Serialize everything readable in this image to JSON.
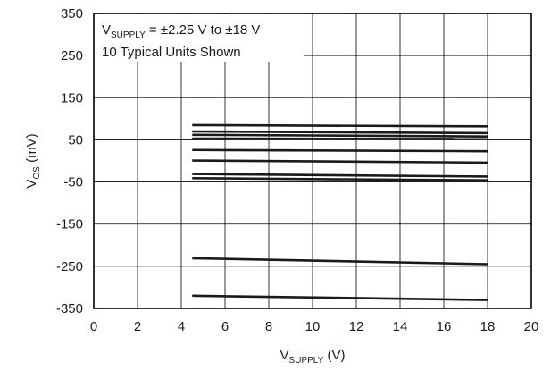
{
  "chart_data": {
    "type": "line",
    "xlabel": {
      "main": "V",
      "sub": "SUPPLY",
      "unit": " (V)"
    },
    "ylabel": {
      "main": "V",
      "sub": "OS",
      "unit": " (mV)"
    },
    "xlim": [
      0,
      20
    ],
    "ylim": [
      -350,
      350
    ],
    "x_ticks": [
      0,
      2,
      4,
      6,
      8,
      10,
      12,
      14,
      16,
      18,
      20
    ],
    "y_ticks": [
      -350,
      -250,
      -150,
      -50,
      50,
      150,
      250,
      350
    ],
    "grid": true,
    "annotation": {
      "line1": {
        "prefix": "V",
        "sub": "SUPPLY",
        "suffix": " = ±2.25 V to ±18 V"
      },
      "line2": "10 Typical Units Shown"
    },
    "series": [
      {
        "x": [
          4.5,
          18
        ],
        "values": [
          85,
          82
        ]
      },
      {
        "x": [
          4.5,
          18
        ],
        "values": [
          70,
          66
        ]
      },
      {
        "x": [
          4.5,
          18
        ],
        "values": [
          62,
          58
        ]
      },
      {
        "x": [
          4.5,
          18
        ],
        "values": [
          53,
          52
        ]
      },
      {
        "x": [
          4.5,
          18
        ],
        "values": [
          26,
          23
        ]
      },
      {
        "x": [
          4.5,
          18
        ],
        "values": [
          1,
          -4
        ]
      },
      {
        "x": [
          4.5,
          18
        ],
        "values": [
          -31,
          -37
        ]
      },
      {
        "x": [
          4.5,
          18
        ],
        "values": [
          -41,
          -46
        ]
      },
      {
        "x": [
          4.5,
          18
        ],
        "values": [
          -231,
          -245
        ]
      },
      {
        "x": [
          4.5,
          18
        ],
        "values": [
          -320,
          -330
        ]
      }
    ]
  }
}
